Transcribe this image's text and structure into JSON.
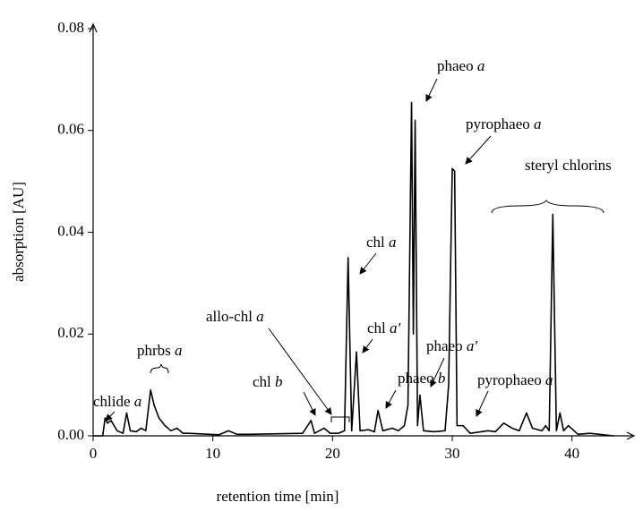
{
  "chart_data": {
    "type": "line",
    "xlabel": "retention time  [min]",
    "ylabel": "absorption  [AU]",
    "xlim": [
      0,
      45
    ],
    "ylim": [
      0,
      0.08
    ],
    "xticks": [
      0,
      10,
      20,
      30,
      40
    ],
    "yticks": [
      {
        "value": 0,
        "label": "0.00"
      },
      0.02,
      0.04,
      0.06,
      0.08
    ],
    "color": "#000000",
    "x": [
      0,
      0.8,
      1.0,
      1.2,
      1.5,
      2.0,
      2.5,
      2.8,
      3.1,
      3.6,
      4.0,
      4.4,
      4.8,
      5.1,
      5.5,
      6.0,
      6.5,
      7.0,
      7.5,
      8.0,
      10.5,
      11.3,
      12.0,
      13.0,
      17.5,
      18.2,
      18.5,
      19.3,
      19.8,
      20.5,
      21.0,
      21.3,
      21.6,
      22.0,
      22.3,
      23.0,
      23.5,
      23.8,
      24.2,
      25.0,
      25.5,
      26.0,
      26.3,
      26.6,
      26.75,
      26.9,
      27.1,
      27.3,
      27.6,
      28.5,
      29.4,
      29.7,
      30.0,
      30.2,
      30.4,
      30.9,
      31.5,
      33.0,
      33.6,
      34.3,
      35.0,
      35.6,
      36.2,
      36.7,
      37.5,
      37.8,
      38.1,
      38.4,
      38.7,
      39.0,
      39.3,
      39.7,
      40.5,
      41.5,
      43.5
    ],
    "y": [
      0,
      0,
      0.0035,
      0.0025,
      0.003,
      0.001,
      0.0005,
      0.0045,
      0.001,
      0.0008,
      0.0015,
      0.001,
      0.009,
      0.006,
      0.0035,
      0.002,
      0.001,
      0.0015,
      0.0005,
      0.0005,
      0.0002,
      0.001,
      0.0003,
      0.0003,
      0.0005,
      0.003,
      0.0005,
      0.0015,
      0.0005,
      0.0005,
      0.001,
      0.035,
      0.001,
      0.0165,
      0.001,
      0.0012,
      0.0008,
      0.005,
      0.001,
      0.0015,
      0.001,
      0.002,
      0.006,
      0.0655,
      0.02,
      0.062,
      0.002,
      0.008,
      0.001,
      0.0008,
      0.001,
      0.01,
      0.0525,
      0.052,
      0.002,
      0.002,
      0.0005,
      0.001,
      0.0008,
      0.0025,
      0.0015,
      0.001,
      0.0045,
      0.0015,
      0.001,
      0.002,
      0.001,
      0.0435,
      0.001,
      0.0045,
      0.001,
      0.002,
      0.0003,
      0.0005,
      0
    ],
    "annotations": [
      {
        "text": "chlide ",
        "italic": "a"
      },
      {
        "text": "phrbs ",
        "italic": "a"
      },
      {
        "text": "allo-chl ",
        "italic": "a"
      },
      {
        "text": "chl ",
        "italic": "b"
      },
      {
        "text": "chl ",
        "italic": "a"
      },
      {
        "text": "chl ",
        "italic": "a'"
      },
      {
        "text": "phaeo ",
        "italic": "b"
      },
      {
        "text": "phaeo ",
        "italic": "a"
      },
      {
        "text": "phaeo ",
        "italic": "a'"
      },
      {
        "text": "pyrophaeo ",
        "italic": "a"
      },
      {
        "text": "pyrophaeo ",
        "italic": "a'"
      },
      {
        "text": "steryl chlorins"
      }
    ]
  }
}
